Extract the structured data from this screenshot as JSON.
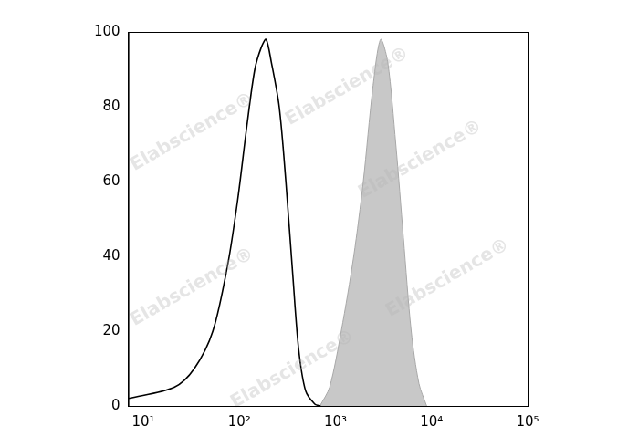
{
  "chart_data": {
    "type": "line",
    "watermark": "Elabscience®",
    "log": "x",
    "grid": false,
    "xlim": [
      7,
      100000
    ],
    "xticks": [
      {
        "value": 10,
        "label": "10¹"
      },
      {
        "value": 100,
        "label": "10²"
      },
      {
        "value": 1000,
        "label": "10³"
      },
      {
        "value": 10000,
        "label": "10⁴"
      },
      {
        "value": 100000,
        "label": "10⁵"
      }
    ],
    "ylim": [
      0,
      100
    ],
    "yticks": [
      0,
      20,
      40,
      60,
      80,
      100
    ],
    "series": [
      {
        "type": "line",
        "color": "#000000",
        "x": [
          7,
          21,
          34,
          53,
          76,
          96,
          120,
          145,
          170,
          190,
          215,
          260,
          305,
          360,
          415,
          490,
          610,
          700
        ],
        "values": [
          2,
          5,
          10,
          20,
          38,
          55,
          75,
          90,
          96,
          98,
          92,
          80,
          60,
          35,
          15,
          4,
          0.5,
          0
        ]
      },
      {
        "type": "area",
        "color": "#c8c8c8",
        "x": [
          690,
          870,
          1150,
          1550,
          1950,
          2450,
          2950,
          3500,
          4250,
          5100,
          6150,
          7400,
          8900
        ],
        "values": [
          0,
          5,
          20,
          40,
          60,
          85,
          98,
          92,
          70,
          45,
          20,
          6,
          0
        ]
      }
    ]
  }
}
